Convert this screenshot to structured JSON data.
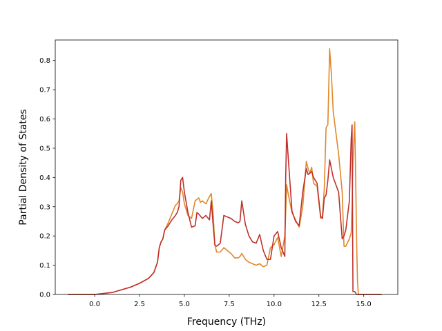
{
  "chart_data": {
    "type": "line",
    "title": "",
    "xlabel": "Frequency (THz)",
    "ylabel": "Partial Density of States",
    "xlim": [
      -2.2,
      16.9
    ],
    "ylim": [
      0,
      0.87
    ],
    "xticks": [
      0.0,
      2.5,
      5.0,
      7.5,
      10.0,
      12.5,
      15.0
    ],
    "xtick_labels": [
      "0.0",
      "2.5",
      "5.0",
      "7.5",
      "10.0",
      "12.5",
      "15.0"
    ],
    "yticks": [
      0.0,
      0.1,
      0.2,
      0.3,
      0.4,
      0.5,
      0.6,
      0.7,
      0.8
    ],
    "ytick_labels": [
      "0.0",
      "0.1",
      "0.2",
      "0.3",
      "0.4",
      "0.5",
      "0.6",
      "0.7",
      "0.8"
    ],
    "grid": false,
    "legend": false,
    "colors": [
      "#e08728",
      "#c0302a"
    ],
    "series": [
      {
        "color": "#e08728",
        "x": [
          -1.5,
          0.0,
          1.0,
          2.0,
          2.5,
          3.0,
          3.3,
          3.5,
          3.6,
          3.7,
          3.8,
          3.9,
          4.1,
          4.3,
          4.5,
          4.6,
          4.7,
          4.8,
          4.9,
          5.0,
          5.2,
          5.4,
          5.6,
          5.8,
          5.9,
          6.0,
          6.2,
          6.4,
          6.5,
          6.6,
          6.7,
          6.8,
          7.0,
          7.2,
          7.4,
          7.6,
          7.8,
          8.0,
          8.1,
          8.2,
          8.4,
          8.6,
          8.8,
          9.0,
          9.2,
          9.4,
          9.6,
          9.8,
          10.0,
          10.2,
          10.4,
          10.6,
          10.65,
          10.7,
          10.8,
          11.0,
          11.2,
          11.4,
          11.6,
          11.8,
          11.9,
          12.0,
          12.1,
          12.2,
          12.4,
          12.6,
          12.7,
          12.8,
          12.9,
          13.0,
          13.1,
          13.2,
          13.3,
          13.6,
          13.8,
          13.9,
          14.0,
          14.2,
          14.3,
          14.35,
          14.4,
          14.5,
          14.55,
          14.6,
          14.65,
          14.7,
          16.0
        ],
        "y": [
          0.0,
          0.0,
          0.007,
          0.025,
          0.038,
          0.055,
          0.075,
          0.11,
          0.16,
          0.18,
          0.19,
          0.22,
          0.245,
          0.275,
          0.305,
          0.31,
          0.32,
          0.365,
          0.35,
          0.31,
          0.27,
          0.26,
          0.32,
          0.33,
          0.315,
          0.32,
          0.31,
          0.335,
          0.345,
          0.28,
          0.17,
          0.145,
          0.145,
          0.16,
          0.15,
          0.14,
          0.125,
          0.125,
          0.13,
          0.14,
          0.12,
          0.11,
          0.105,
          0.1,
          0.105,
          0.095,
          0.1,
          0.16,
          0.17,
          0.195,
          0.13,
          0.2,
          0.28,
          0.375,
          0.34,
          0.28,
          0.255,
          0.23,
          0.3,
          0.455,
          0.43,
          0.415,
          0.435,
          0.38,
          0.37,
          0.26,
          0.27,
          0.36,
          0.57,
          0.58,
          0.84,
          0.75,
          0.625,
          0.48,
          0.35,
          0.165,
          0.165,
          0.19,
          0.21,
          0.3,
          0.45,
          0.59,
          0.4,
          0.2,
          0.05,
          0.0,
          0.0
        ]
      },
      {
        "color": "#c0302a",
        "x": [
          -1.5,
          0.0,
          1.0,
          2.0,
          2.5,
          3.0,
          3.3,
          3.5,
          3.6,
          3.7,
          3.8,
          3.9,
          4.1,
          4.3,
          4.5,
          4.6,
          4.7,
          4.8,
          4.9,
          5.0,
          5.2,
          5.4,
          5.6,
          5.7,
          5.8,
          6.0,
          6.2,
          6.4,
          6.5,
          6.6,
          6.7,
          6.8,
          7.0,
          7.2,
          7.4,
          7.6,
          7.8,
          8.0,
          8.1,
          8.2,
          8.4,
          8.6,
          8.8,
          9.0,
          9.2,
          9.4,
          9.6,
          9.8,
          10.0,
          10.2,
          10.4,
          10.6,
          10.65,
          10.7,
          10.8,
          11.0,
          11.2,
          11.4,
          11.6,
          11.8,
          11.9,
          12.0,
          12.1,
          12.2,
          12.4,
          12.6,
          12.7,
          12.8,
          12.9,
          13.0,
          13.1,
          13.2,
          13.3,
          13.6,
          13.8,
          13.9,
          14.0,
          14.2,
          14.3,
          14.35,
          14.4,
          14.5,
          14.6,
          16.0
        ],
        "y": [
          0.0,
          0.0,
          0.007,
          0.025,
          0.038,
          0.055,
          0.075,
          0.11,
          0.16,
          0.18,
          0.19,
          0.22,
          0.235,
          0.255,
          0.27,
          0.28,
          0.3,
          0.39,
          0.4,
          0.35,
          0.28,
          0.23,
          0.235,
          0.28,
          0.275,
          0.26,
          0.27,
          0.255,
          0.32,
          0.24,
          0.17,
          0.165,
          0.175,
          0.27,
          0.265,
          0.26,
          0.25,
          0.245,
          0.25,
          0.32,
          0.24,
          0.2,
          0.18,
          0.175,
          0.205,
          0.15,
          0.12,
          0.12,
          0.2,
          0.215,
          0.16,
          0.13,
          0.4,
          0.55,
          0.46,
          0.285,
          0.25,
          0.235,
          0.35,
          0.43,
          0.41,
          0.415,
          0.42,
          0.4,
          0.38,
          0.265,
          0.26,
          0.33,
          0.34,
          0.39,
          0.46,
          0.43,
          0.4,
          0.35,
          0.19,
          0.2,
          0.22,
          0.32,
          0.53,
          0.58,
          0.01,
          0.01,
          0.0,
          0.0
        ]
      }
    ]
  }
}
